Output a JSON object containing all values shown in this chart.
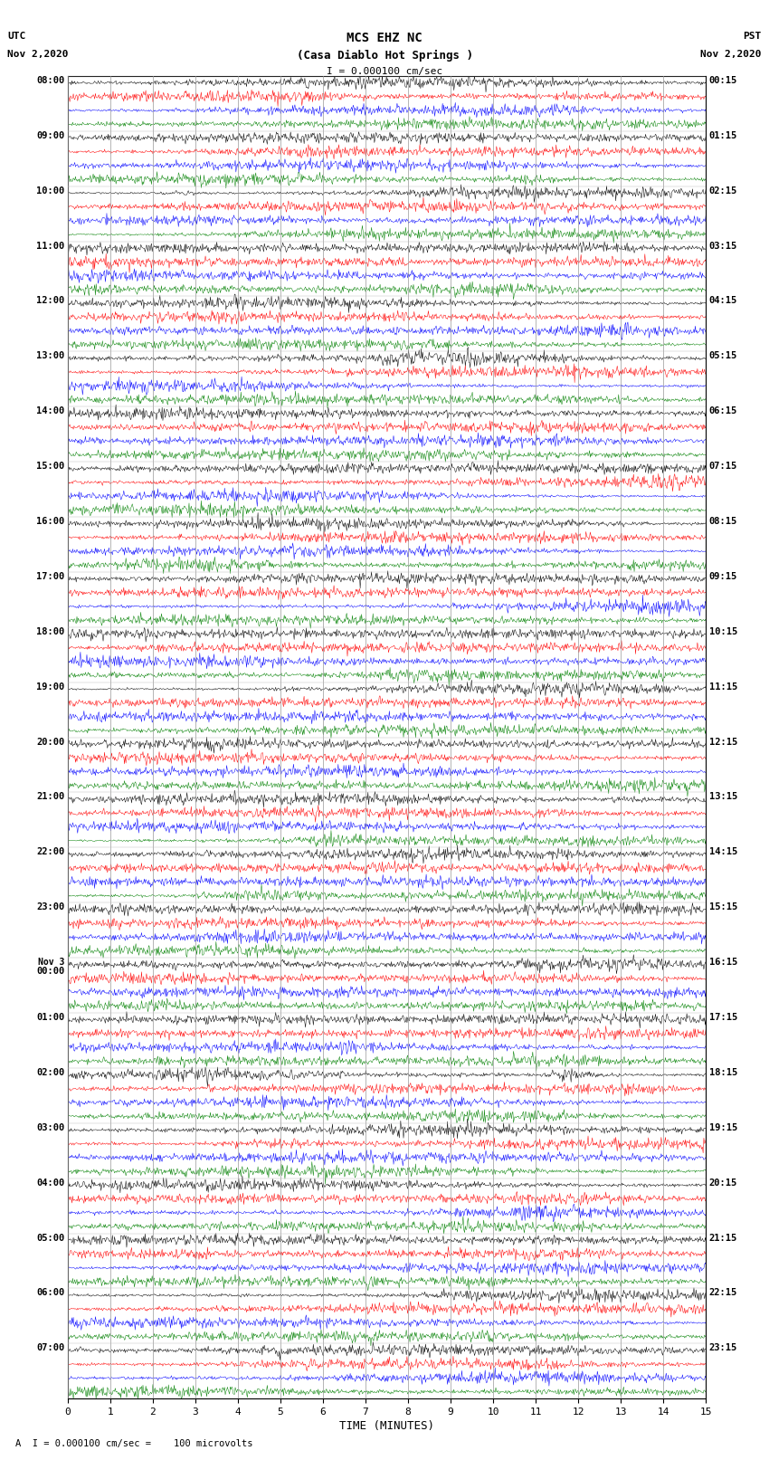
{
  "title_line1": "MCS EHZ NC",
  "title_line2": "(Casa Diablo Hot Springs )",
  "scale_label": "I = 0.000100 cm/sec",
  "left_header": "UTC",
  "left_date": "Nov 2,2020",
  "right_header": "PST",
  "right_date_top": "Nov 2,2020",
  "xlabel": "TIME (MINUTES)",
  "footer": "A  I = 0.000100 cm/sec =    100 microvolts",
  "utc_times": [
    "08:00",
    "09:00",
    "10:00",
    "11:00",
    "12:00",
    "13:00",
    "14:00",
    "15:00",
    "16:00",
    "17:00",
    "18:00",
    "19:00",
    "20:00",
    "21:00",
    "22:00",
    "23:00",
    "Nov 3\n00:00",
    "01:00",
    "02:00",
    "03:00",
    "04:00",
    "05:00",
    "06:00",
    "07:00"
  ],
  "pst_times": [
    "00:15",
    "01:15",
    "02:15",
    "03:15",
    "04:15",
    "05:15",
    "06:15",
    "07:15",
    "08:15",
    "09:15",
    "10:15",
    "11:15",
    "12:15",
    "13:15",
    "14:15",
    "15:15",
    "16:15",
    "17:15",
    "18:15",
    "19:15",
    "20:15",
    "21:15",
    "22:15",
    "23:15"
  ],
  "trace_colors": [
    "black",
    "red",
    "blue",
    "green"
  ],
  "background_color": "white",
  "n_hours": 24,
  "traces_per_hour": 4,
  "minutes": 15,
  "line_width": 0.35,
  "vline_color": "#999999",
  "vline_lw": 0.5,
  "hline_color": "#bbbbbb",
  "hline_lw": 0.3,
  "figsize": [
    8.5,
    16.13
  ],
  "dpi": 100,
  "samples_per_minute": 60,
  "amplitude": 0.32,
  "spike_prob": 0.06,
  "event_prob": 0.08
}
